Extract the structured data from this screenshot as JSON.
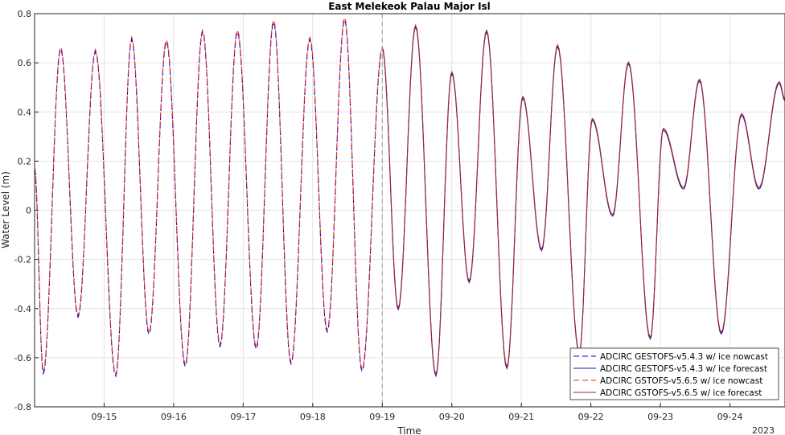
{
  "chart_data": {
    "type": "line",
    "title": "East Melekeok Palau Major Isl",
    "xlabel": "Time",
    "ylabel": "Water Level (m)",
    "year_label": "2023",
    "x_range": [
      "2023-09-14T00:00",
      "2023-09-24T19:00"
    ],
    "ylim": [
      -0.8,
      0.8
    ],
    "yticks": [
      -0.8,
      -0.6,
      -0.4,
      -0.2,
      0,
      0.2,
      0.4,
      0.6,
      0.8
    ],
    "xticks": [
      {
        "date": "2023-09-15T00:00",
        "label": "09-15"
      },
      {
        "date": "2023-09-16T00:00",
        "label": "09-16"
      },
      {
        "date": "2023-09-17T00:00",
        "label": "09-17"
      },
      {
        "date": "2023-09-18T00:00",
        "label": "09-18"
      },
      {
        "date": "2023-09-19T00:00",
        "label": "09-19"
      },
      {
        "date": "2023-09-20T00:00",
        "label": "09-20"
      },
      {
        "date": "2023-09-21T00:00",
        "label": "09-21"
      },
      {
        "date": "2023-09-22T00:00",
        "label": "09-22"
      },
      {
        "date": "2023-09-23T00:00",
        "label": "09-23"
      },
      {
        "date": "2023-09-24T00:00",
        "label": "09-24"
      }
    ],
    "grid": true,
    "legend_position": "bottom-right",
    "forecast_start": "2023-09-19T00:00",
    "nowcast_extrema": [
      [
        "2023-09-14T00:00",
        0.17
      ],
      [
        "2023-09-14T03:00",
        -0.66
      ],
      [
        "2023-09-14T09:00",
        0.66
      ],
      [
        "2023-09-14T15:00",
        -0.43
      ],
      [
        "2023-09-14T21:00",
        0.65
      ],
      [
        "2023-09-15T04:00",
        -0.67
      ],
      [
        "2023-09-15T09:30",
        0.7
      ],
      [
        "2023-09-15T15:30",
        -0.5
      ],
      [
        "2023-09-15T21:30",
        0.69
      ],
      [
        "2023-09-16T04:00",
        -0.63
      ],
      [
        "2023-09-16T10:00",
        0.73
      ],
      [
        "2023-09-16T16:00",
        -0.55
      ],
      [
        "2023-09-16T22:00",
        0.73
      ],
      [
        "2023-09-17T04:30",
        -0.56
      ],
      [
        "2023-09-17T10:30",
        0.77
      ],
      [
        "2023-09-17T16:30",
        -0.62
      ],
      [
        "2023-09-17T23:00",
        0.7
      ],
      [
        "2023-09-18T05:00",
        -0.49
      ],
      [
        "2023-09-18T11:00",
        0.78
      ],
      [
        "2023-09-18T17:00",
        -0.65
      ],
      [
        "2023-09-19T00:00",
        0.66
      ]
    ],
    "forecast_extrema": [
      [
        "2023-09-19T00:00",
        0.66
      ],
      [
        "2023-09-19T05:30",
        -0.4
      ],
      [
        "2023-09-19T11:30",
        0.75
      ],
      [
        "2023-09-19T18:30",
        -0.67
      ],
      [
        "2023-09-20T00:00",
        0.56
      ],
      [
        "2023-09-20T06:00",
        -0.29
      ],
      [
        "2023-09-20T12:00",
        0.73
      ],
      [
        "2023-09-20T19:00",
        -0.64
      ],
      [
        "2023-09-21T00:30",
        0.46
      ],
      [
        "2023-09-21T07:00",
        -0.16
      ],
      [
        "2023-09-21T12:30",
        0.67
      ],
      [
        "2023-09-21T20:00",
        -0.58
      ],
      [
        "2023-09-22T00:30",
        0.37
      ],
      [
        "2023-09-22T07:30",
        -0.02
      ],
      [
        "2023-09-22T13:00",
        0.6
      ],
      [
        "2023-09-22T20:30",
        -0.52
      ],
      [
        "2023-09-23T01:00",
        0.33
      ],
      [
        "2023-09-23T08:00",
        0.09
      ],
      [
        "2023-09-23T13:30",
        0.53
      ],
      [
        "2023-09-23T21:00",
        -0.5
      ],
      [
        "2023-09-24T04:00",
        0.39
      ],
      [
        "2023-09-24T10:00",
        0.09
      ],
      [
        "2023-09-24T17:00",
        0.52
      ],
      [
        "2023-09-24T19:00",
        0.45
      ]
    ],
    "series": [
      {
        "name": "ADCIRC GESTOFS-v5.4.3 w/ ice nowcast",
        "color": "#0000cc",
        "dash": "dashed",
        "segment": "nowcast",
        "offset": -0.005
      },
      {
        "name": "ADCIRC GESTOFS-v5.4.3 w/ ice forecast",
        "color": "#1a1aaa",
        "dash": "solid",
        "segment": "forecast",
        "offset": -0.004
      },
      {
        "name": "ADCIRC GSTOFS-v5.6.5 w/ ice nowcast",
        "color": "#e8271e",
        "dash": "dashed",
        "segment": "nowcast",
        "offset": 0.004
      },
      {
        "name": "ADCIRC GSTOFS-v5.6.5 w/ ice forecast",
        "color": "#a3262e",
        "dash": "solid",
        "segment": "forecast",
        "offset": 0.003
      }
    ]
  }
}
